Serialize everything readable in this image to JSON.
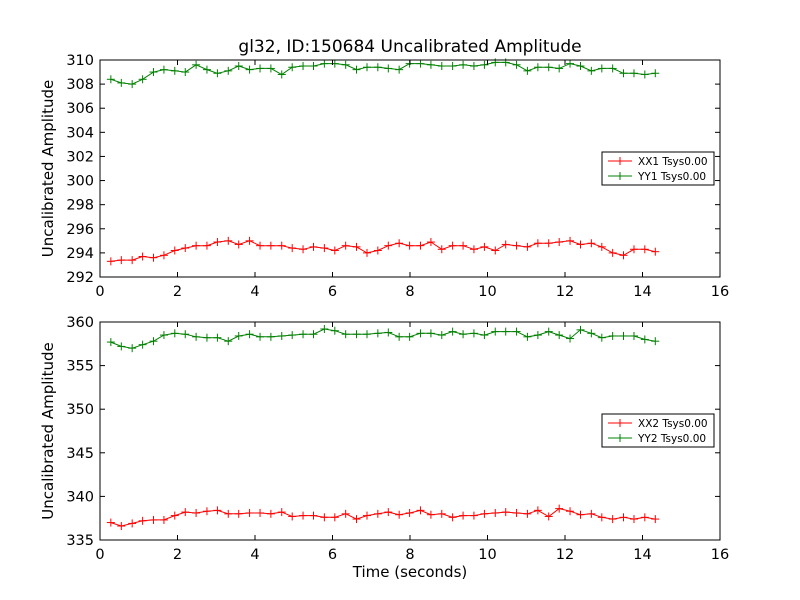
{
  "chart_data": [
    {
      "type": "line",
      "title": "gl32, ID:150684 Uncalibrated Amplitude",
      "xlabel": "",
      "ylabel": "Uncalibrated Amplitude",
      "xlim": [
        0,
        16
      ],
      "ylim": [
        292,
        310
      ],
      "xticks": [
        0,
        2,
        4,
        6,
        8,
        10,
        12,
        14,
        16
      ],
      "yticks": [
        292,
        294,
        296,
        298,
        300,
        302,
        304,
        306,
        308,
        310
      ],
      "grid": false,
      "legend": "center-right",
      "x": [
        0.28,
        0.55,
        0.83,
        1.1,
        1.38,
        1.65,
        1.93,
        2.2,
        2.48,
        2.76,
        3.03,
        3.31,
        3.58,
        3.86,
        4.13,
        4.41,
        4.69,
        4.96,
        5.24,
        5.51,
        5.79,
        6.06,
        6.34,
        6.62,
        6.89,
        7.17,
        7.44,
        7.72,
        7.99,
        8.27,
        8.54,
        8.82,
        9.1,
        9.37,
        9.65,
        9.92,
        10.2,
        10.47,
        10.75,
        11.03,
        11.3,
        11.58,
        11.85,
        12.13,
        12.4,
        12.68,
        12.95,
        13.23,
        13.51,
        13.78,
        14.06,
        14.33
      ],
      "series": [
        {
          "name": "XX1 Tsys0.00",
          "color": "#ff0000",
          "values": [
            293.3,
            293.4,
            293.4,
            293.7,
            293.6,
            293.8,
            294.2,
            294.4,
            294.6,
            294.6,
            294.9,
            295.0,
            294.7,
            295.0,
            294.6,
            294.6,
            294.6,
            294.4,
            294.3,
            294.5,
            294.4,
            294.2,
            294.6,
            294.5,
            294.0,
            294.2,
            294.6,
            294.8,
            294.6,
            294.6,
            294.9,
            294.3,
            294.6,
            294.6,
            294.3,
            294.5,
            294.2,
            294.7,
            294.6,
            294.5,
            294.8,
            294.8,
            294.9,
            295.0,
            294.7,
            294.8,
            294.5,
            294.0,
            293.8,
            294.3,
            294.3,
            294.1
          ]
        },
        {
          "name": "YY1 Tsys0.00",
          "color": "#008000",
          "values": [
            308.4,
            308.1,
            308.0,
            308.4,
            309.0,
            309.2,
            309.1,
            309.0,
            309.6,
            309.2,
            308.9,
            309.1,
            309.5,
            309.2,
            309.3,
            309.3,
            308.8,
            309.4,
            309.5,
            309.5,
            309.7,
            309.7,
            309.6,
            309.2,
            309.4,
            309.4,
            309.3,
            309.2,
            309.7,
            309.7,
            309.6,
            309.5,
            309.5,
            309.6,
            309.5,
            309.6,
            309.8,
            309.8,
            309.6,
            309.1,
            309.4,
            309.4,
            309.3,
            309.7,
            309.5,
            309.1,
            309.3,
            309.3,
            308.9,
            308.9,
            308.8,
            308.9
          ]
        }
      ]
    },
    {
      "type": "line",
      "title": "",
      "xlabel": "Time (seconds)",
      "ylabel": "Uncalibrated Amplitude",
      "xlim": [
        0,
        16
      ],
      "ylim": [
        335,
        360
      ],
      "xticks": [
        0,
        2,
        4,
        6,
        8,
        10,
        12,
        14,
        16
      ],
      "yticks": [
        335,
        340,
        345,
        350,
        355,
        360
      ],
      "grid": false,
      "legend": "center-right",
      "x": [
        0.28,
        0.55,
        0.83,
        1.1,
        1.38,
        1.65,
        1.93,
        2.2,
        2.48,
        2.76,
        3.03,
        3.31,
        3.58,
        3.86,
        4.13,
        4.41,
        4.69,
        4.96,
        5.24,
        5.51,
        5.79,
        6.06,
        6.34,
        6.62,
        6.89,
        7.17,
        7.44,
        7.72,
        7.99,
        8.27,
        8.54,
        8.82,
        9.1,
        9.37,
        9.65,
        9.92,
        10.2,
        10.47,
        10.75,
        11.03,
        11.3,
        11.58,
        11.85,
        12.13,
        12.4,
        12.68,
        12.95,
        13.23,
        13.51,
        13.78,
        14.06,
        14.33
      ],
      "series": [
        {
          "name": "XX2 Tsys0.00",
          "color": "#ff0000",
          "values": [
            337.0,
            336.6,
            336.9,
            337.2,
            337.3,
            337.3,
            337.8,
            338.2,
            338.1,
            338.3,
            338.4,
            338.0,
            338.0,
            338.1,
            338.1,
            338.0,
            338.2,
            337.7,
            337.8,
            337.8,
            337.6,
            337.6,
            338.0,
            337.4,
            337.8,
            338.0,
            338.2,
            337.9,
            338.1,
            338.4,
            337.9,
            338.0,
            337.6,
            337.8,
            337.8,
            338.0,
            338.1,
            338.2,
            338.1,
            338.0,
            338.4,
            337.7,
            338.6,
            338.3,
            337.9,
            338.0,
            337.6,
            337.4,
            337.6,
            337.4,
            337.6,
            337.4
          ]
        },
        {
          "name": "YY2 Tsys0.00",
          "color": "#008000",
          "values": [
            357.7,
            357.2,
            357.0,
            357.4,
            357.8,
            358.5,
            358.7,
            358.6,
            358.3,
            358.2,
            358.2,
            357.8,
            358.4,
            358.6,
            358.3,
            358.3,
            358.4,
            358.5,
            358.6,
            358.6,
            359.2,
            359.0,
            358.6,
            358.6,
            358.6,
            358.7,
            358.8,
            358.3,
            358.3,
            358.7,
            358.7,
            358.5,
            358.9,
            358.6,
            358.7,
            358.5,
            358.9,
            358.9,
            358.9,
            358.3,
            358.5,
            358.9,
            358.5,
            358.1,
            359.1,
            358.7,
            358.2,
            358.4,
            358.4,
            358.4,
            358.0,
            357.8
          ]
        }
      ]
    }
  ]
}
